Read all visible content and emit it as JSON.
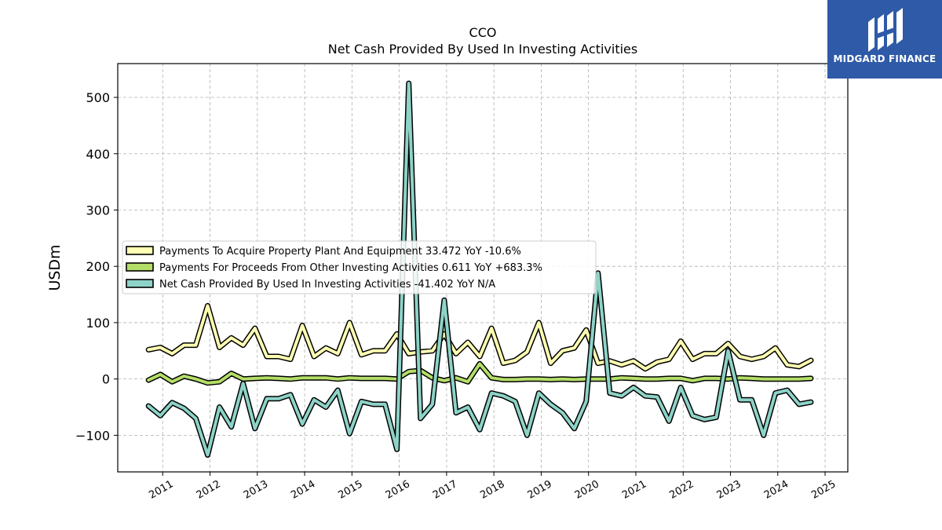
{
  "chart_data": {
    "type": "line",
    "title": "CCO",
    "subtitle": "Net Cash Provided By Used In Investing Activities",
    "xlabel": "",
    "ylabel": "USDm",
    "ylim": [
      -165,
      560
    ],
    "xlim": [
      2010.05,
      2025.48
    ],
    "yticks": [
      -100,
      0,
      100,
      200,
      300,
      400,
      500
    ],
    "xticks": [
      "2011",
      "2012",
      "2013",
      "2014",
      "2015",
      "2016",
      "2017",
      "2018",
      "2019",
      "2020",
      "2021",
      "2022",
      "2023",
      "2024",
      "2025"
    ],
    "grid": true,
    "legend_position": "center-left",
    "x": [
      2010.7,
      2010.95,
      2011.2,
      2011.45,
      2011.7,
      2011.95,
      2012.2,
      2012.45,
      2012.7,
      2012.95,
      2013.2,
      2013.45,
      2013.7,
      2013.95,
      2014.2,
      2014.45,
      2014.7,
      2014.95,
      2015.2,
      2015.45,
      2015.7,
      2015.95,
      2016.2,
      2016.45,
      2016.7,
      2016.95,
      2017.2,
      2017.45,
      2017.7,
      2017.95,
      2018.2,
      2018.45,
      2018.7,
      2018.95,
      2019.2,
      2019.45,
      2019.7,
      2019.95,
      2020.2,
      2020.45,
      2020.7,
      2020.95,
      2021.2,
      2021.45,
      2021.7,
      2021.95,
      2022.2,
      2022.45,
      2022.7,
      2022.95,
      2023.2,
      2023.45,
      2023.7,
      2023.95,
      2024.2,
      2024.45,
      2024.7
    ],
    "series": [
      {
        "name": "Payments To Acquire Property Plant And Equipment  33.472 YoY -10.6%",
        "color": "#ffffb3",
        "values": [
          52,
          56,
          45,
          60,
          60,
          130,
          56,
          73,
          60,
          90,
          40,
          40,
          35,
          95,
          40,
          55,
          45,
          100,
          43,
          50,
          50,
          80,
          45,
          48,
          50,
          80,
          45,
          65,
          40,
          90,
          28,
          33,
          48,
          100,
          28,
          50,
          55,
          87,
          28,
          32,
          25,
          32,
          18,
          30,
          35,
          67,
          35,
          45,
          45,
          63,
          40,
          35,
          40,
          55,
          25,
          22,
          33
        ]
      },
      {
        "name": "Payments For Proceeds From Other Investing Activities  0.611 YoY +683.3%",
        "color": "#b4de68",
        "values": [
          -2,
          8,
          -5,
          5,
          0,
          -7,
          -5,
          10,
          0,
          1,
          2,
          1,
          0,
          2,
          2,
          2,
          0,
          2,
          1,
          1,
          1,
          0,
          13,
          15,
          2,
          -3,
          2,
          -5,
          27,
          2,
          -1,
          -1,
          0,
          0,
          -1,
          0,
          -1,
          0,
          0,
          0,
          2,
          1,
          0,
          0,
          1,
          1,
          -3,
          1,
          1,
          0,
          2,
          1,
          0,
          0,
          0,
          0,
          1
        ]
      },
      {
        "name": "Net Cash Provided By Used In Investing Activities  -41.402 YoY N/A",
        "color": "#8dd3c7",
        "values": [
          -48,
          -65,
          -42,
          -52,
          -70,
          -135,
          -50,
          -85,
          -8,
          -88,
          -35,
          -35,
          -28,
          -80,
          -37,
          -50,
          -20,
          -97,
          -40,
          -45,
          -45,
          -125,
          525,
          -70,
          -45,
          140,
          -60,
          -50,
          -90,
          -25,
          -30,
          -40,
          -100,
          -25,
          -45,
          -60,
          -88,
          -40,
          188,
          -25,
          -30,
          -15,
          -30,
          -32,
          -75,
          -15,
          -65,
          -72,
          -68,
          50,
          -37,
          -37,
          -100,
          -25,
          -20,
          -45,
          -41
        ]
      }
    ]
  },
  "logo": {
    "text": "MIDGARD FINANCE",
    "background": "#2e5aa8"
  }
}
